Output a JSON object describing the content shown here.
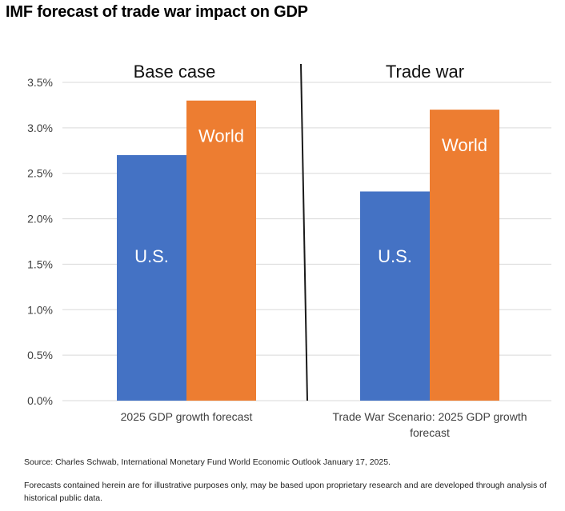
{
  "title": "IMF forecast of trade war impact on GDP",
  "source": "Source: Charles Schwab, International Monetary Fund World Economic Outlook January 17, 2025.",
  "note": "Forecasts contained herein are for illustrative purposes only, may be based upon proprietary research and are developed through analysis of historical public data.",
  "colors": {
    "us": "#4472c4",
    "world": "#ed7d31",
    "grid": "#d9d9d9",
    "divider": "#1a1a1a"
  },
  "chart_data": {
    "type": "bar",
    "categories": [
      "2025 GDP growth forecast",
      [
        "Trade War Scenario: 2025 GDP growth",
        "forecast"
      ]
    ],
    "panel_titles": [
      "Base case",
      "Trade war"
    ],
    "series": [
      {
        "name": "U.S.",
        "values": [
          2.7,
          2.3
        ],
        "color": "#4472c4"
      },
      {
        "name": "World",
        "values": [
          3.3,
          3.2
        ],
        "color": "#ed7d31"
      }
    ],
    "y_ticks": [
      "0.0%",
      "0.5%",
      "1.0%",
      "1.5%",
      "2.0%",
      "2.5%",
      "3.0%",
      "3.5%"
    ],
    "ylim": [
      0,
      3.5
    ],
    "grid": true
  }
}
